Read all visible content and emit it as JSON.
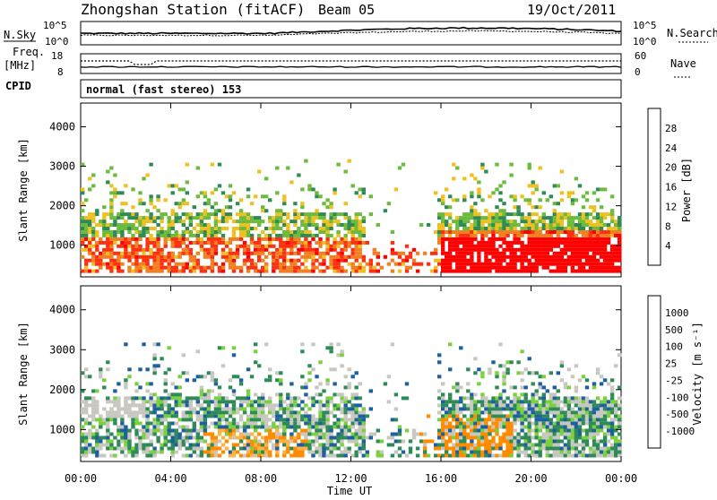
{
  "header": {
    "station": "Zhongshan Station (fitACF)",
    "beam": "Beam 05",
    "date": "19/Oct/2011",
    "cpid_label": "CPID",
    "cpid_value": "normal (fast stereo) 153"
  },
  "chart_data": [
    {
      "type": "line",
      "name": "noise",
      "left_label": "N.Sky",
      "right_label": "N.Search",
      "left_ticks": [
        "10^5",
        "10^0"
      ],
      "right_ticks": [
        "10^5",
        "10^0"
      ]
    },
    {
      "type": "line",
      "name": "frequency",
      "left_label_1": "Freq.",
      "left_label_2": "[MHz]",
      "right_label": "Nave",
      "left_ticks": [
        "18",
        "8"
      ],
      "right_ticks": [
        "60",
        "0"
      ]
    },
    {
      "type": "heatmap",
      "name": "power",
      "ylabel": "Slant Range [km]",
      "ylim": [
        200,
        4600
      ],
      "yticks": [
        "4000",
        "3000",
        "2000",
        "1000"
      ],
      "colorbar_label": "Power [dB]",
      "colorbar_ticks": [
        "28",
        "24",
        "20",
        "16",
        "12",
        "8",
        "4"
      ],
      "colors": [
        "#0000ff",
        "#2a55b4",
        "#2e8b57",
        "#6dbb3c",
        "#f0c020",
        "#f08020",
        "#ff3010",
        "#ff0000"
      ]
    },
    {
      "type": "heatmap",
      "name": "velocity",
      "ylabel": "Slant Range [km]",
      "ylim": [
        200,
        4600
      ],
      "yticks": [
        "4000",
        "3000",
        "2000",
        "1000"
      ],
      "xlabel": "Time UT",
      "xticks": [
        "00:00",
        "04:00",
        "08:00",
        "12:00",
        "16:00",
        "20:00",
        "00:00"
      ],
      "colorbar_label": "Velocity [m s⁻¹]",
      "colorbar_ticks": [
        "1000",
        "500",
        "100",
        "25",
        "-25",
        "-100",
        "-500",
        "-1000"
      ],
      "colors": [
        "#ff0000",
        "#ff4500",
        "#ff8c00",
        "#ffb347",
        "#c8c8c0",
        "#c8c8c0",
        "#7bd040",
        "#2e8b57",
        "#1e5fa0",
        "#0000cc"
      ]
    }
  ]
}
